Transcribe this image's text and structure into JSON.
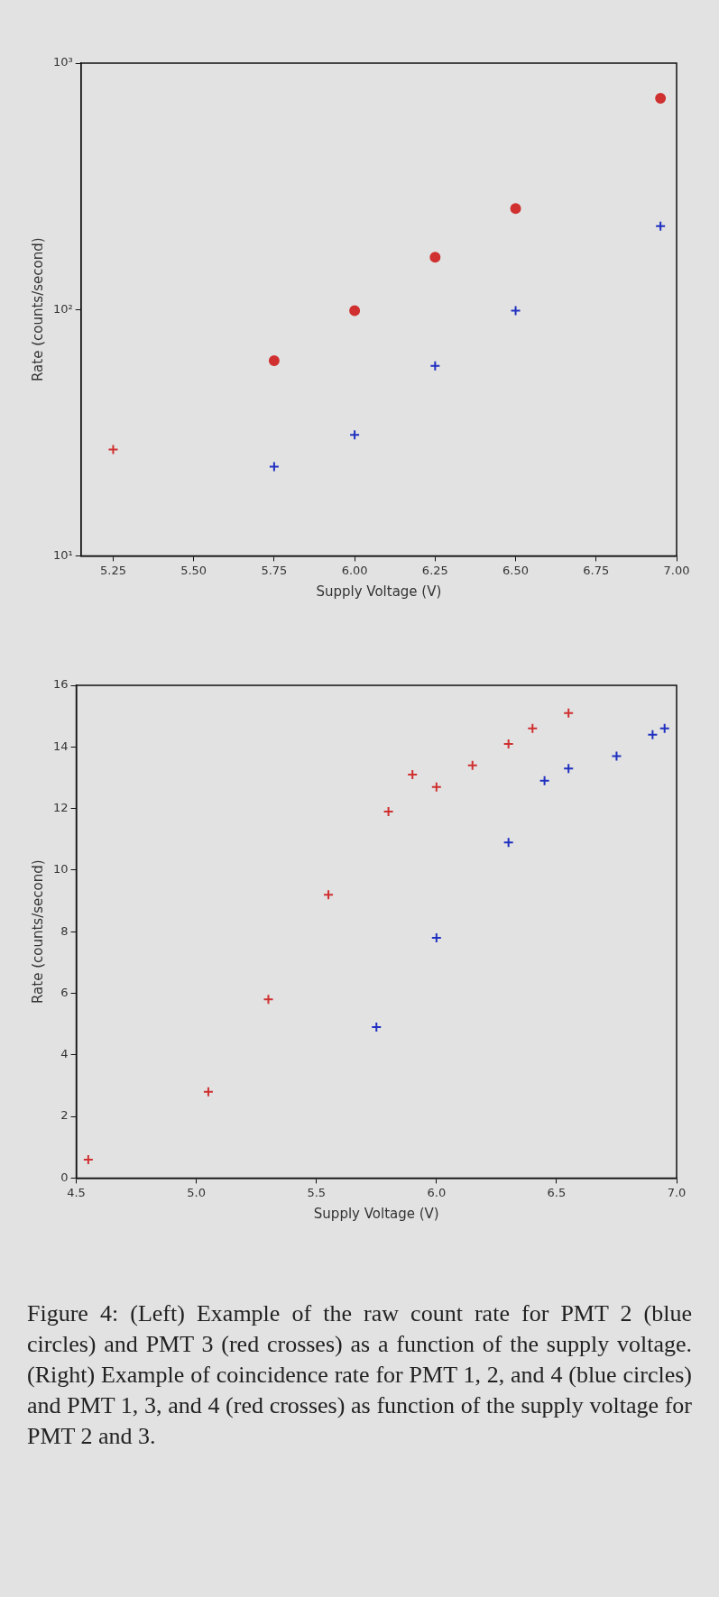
{
  "chart_data": [
    {
      "type": "scatter",
      "xlabel": "Supply Voltage (V)",
      "ylabel": "Rate (counts/second)",
      "log": "y",
      "xlim": [
        5.15,
        7.0
      ],
      "ylim": [
        10,
        1000
      ],
      "xticks": [
        {
          "value": 5.25,
          "label": "5.25"
        },
        {
          "value": 5.5,
          "label": "5.50"
        },
        {
          "value": 5.75,
          "label": "5.75"
        },
        {
          "value": 6.0,
          "label": "6.00"
        },
        {
          "value": 6.25,
          "label": "6.25"
        },
        {
          "value": 6.5,
          "label": "6.50"
        },
        {
          "value": 6.75,
          "label": "6.75"
        },
        {
          "value": 7.0,
          "label": "7.00"
        }
      ],
      "yticks": [
        {
          "value": 10,
          "label": "10¹"
        },
        {
          "value": 100,
          "label": "10²"
        },
        {
          "value": 1000,
          "label": "10³"
        }
      ],
      "series": [
        {
          "color": "#d03030",
          "marker": "cross",
          "x": [
            5.25
          ],
          "values": [
            27
          ]
        },
        {
          "color": "#d03030",
          "marker": "circle",
          "x": [
            5.75,
            6.0,
            6.25,
            6.5,
            6.95
          ],
          "values": [
            62,
            99,
            163,
            257,
            720
          ]
        },
        {
          "color": "#2030c0",
          "marker": "cross",
          "x": [
            5.75,
            6.0,
            6.25,
            6.5,
            6.95
          ],
          "values": [
            23,
            31,
            59,
            99,
            218
          ]
        }
      ],
      "annotations": [
        "Figure 4: (Left) Example of the raw count rate for PMT 2 (blue circles) and PMT 3 (red crosses) as a function of the supply voltage. (Right) Example of coincidence rate for PMT 1, 2, and 4 (blue circles) and PMT 1, 3, and 4 (red crosses) as function of the supply voltage for PMT 2 and 3."
      ]
    },
    {
      "type": "scatter",
      "xlabel": "Supply Voltage (V)",
      "ylabel": "Rate (counts/second)",
      "xlim": [
        4.5,
        7.0
      ],
      "ylim": [
        0,
        16
      ],
      "xticks": [
        4.5,
        {
          "value": 5.0,
          "label": "5.0"
        },
        5.5,
        {
          "value": 6.0,
          "label": "6.0"
        },
        6.5,
        {
          "value": 7.0,
          "label": "7.0"
        }
      ],
      "yticks": [
        0,
        2,
        4,
        6,
        8,
        10,
        12,
        14,
        16
      ],
      "series": [
        {
          "color": "#d03030",
          "marker": "cross",
          "x": [
            4.55,
            5.05,
            5.3,
            5.55,
            5.8,
            5.9,
            6.0,
            6.15,
            6.3,
            6.4,
            6.55
          ],
          "values": [
            0.6,
            2.8,
            5.8,
            9.2,
            11.9,
            13.1,
            12.7,
            13.4,
            14.1,
            14.6,
            15.1
          ]
        },
        {
          "color": "#2030c0",
          "marker": "cross",
          "x": [
            5.75,
            6.0,
            6.3,
            6.45,
            6.55,
            6.75,
            6.9,
            6.95
          ],
          "values": [
            4.9,
            7.8,
            10.9,
            12.9,
            13.3,
            13.7,
            14.4,
            14.6
          ]
        }
      ]
    }
  ]
}
